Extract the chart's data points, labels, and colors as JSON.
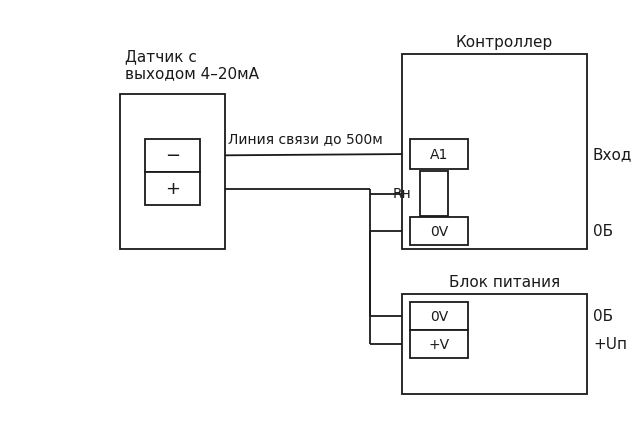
{
  "bg_color": "#ffffff",
  "line_color": "#1a1a1a",
  "sensor_label": "Датчик с\nвыходом 4–20мА",
  "controller_label": "Контроллер",
  "power_label": "Блок питания",
  "line_label": "Линия связи до 500м",
  "A1_label": "A1",
  "Rn_label": "Rн",
  "OV1_label": "0V",
  "OV2_label": "0V",
  "PV_label": "+V",
  "Vhod_label": "Вход",
  "OB1_label": "0Б",
  "OB2_label": "0Б",
  "Up_label": "+Uп",
  "minus_label": "−",
  "plus_label": "+"
}
